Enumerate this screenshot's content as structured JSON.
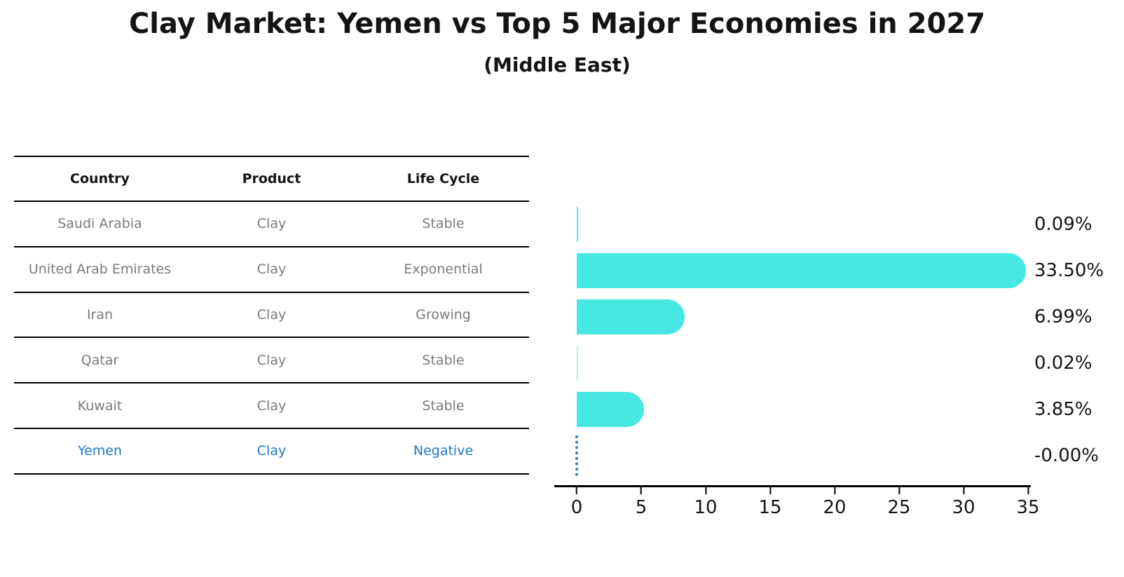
{
  "title": "Clay Market: Yemen vs Top 5 Major Economies in 2027",
  "subtitle": "(Middle East)",
  "colors": {
    "bar_fill": "#46e8e1",
    "highlight_blue": "#2277c8",
    "table_text_gray": "#7a7a7a",
    "text_black": "#141414"
  },
  "table": {
    "columns": [
      "Country",
      "Product",
      "Life Cycle"
    ],
    "rows": [
      {
        "country": "Saudi Arabia",
        "product": "Clay",
        "life_cycle": "Stable",
        "highlight": false
      },
      {
        "country": "United Arab Emirates",
        "product": "Clay",
        "life_cycle": "Exponential",
        "highlight": false
      },
      {
        "country": "Iran",
        "product": "Clay",
        "life_cycle": "Growing",
        "highlight": false
      },
      {
        "country": "Qatar",
        "product": "Clay",
        "life_cycle": "Stable",
        "highlight": false
      },
      {
        "country": "Kuwait",
        "product": "Clay",
        "life_cycle": "Stable",
        "highlight": false
      },
      {
        "country": "Yemen",
        "product": "Clay",
        "life_cycle": "Negative",
        "highlight": true
      }
    ]
  },
  "chart_data": {
    "type": "bar",
    "orientation": "horizontal",
    "title": "Clay Market: Yemen vs Top 5 Major Economies in 2027",
    "subtitle": "(Middle East)",
    "categories": [
      "Saudi Arabia",
      "United Arab Emirates",
      "Iran",
      "Qatar",
      "Kuwait",
      "Yemen"
    ],
    "values": [
      0.09,
      33.5,
      6.99,
      0.02,
      3.85,
      -0.0
    ],
    "value_labels": [
      "0.09%",
      "33.50%",
      "6.99%",
      "0.02%",
      "3.85%",
      "-0.00%"
    ],
    "xticks": [
      0,
      5,
      10,
      15,
      20,
      25,
      30,
      35
    ],
    "xlim": [
      0,
      35
    ],
    "grid": false,
    "legend": "none",
    "bar_color": "#46e8e1",
    "negative_marker": "dotted-line-at-zero"
  }
}
